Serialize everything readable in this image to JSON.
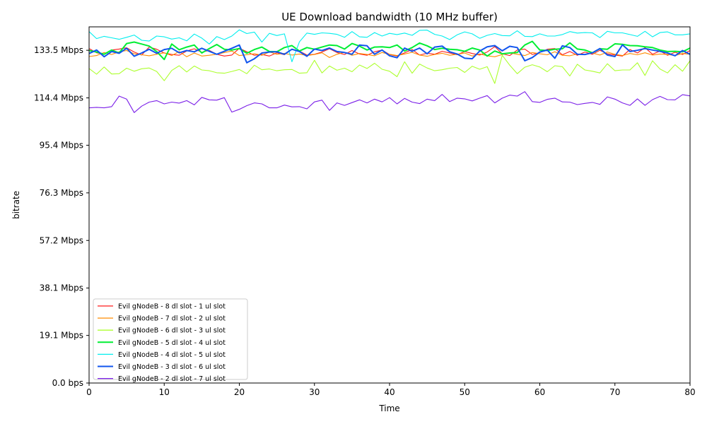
{
  "chart_data": {
    "type": "line",
    "title": "UE Download bandwidth (10 MHz buffer)",
    "xlabel": "Time",
    "ylabel": "bitrate",
    "xlim": [
      0,
      80
    ],
    "ylim": [
      0,
      142.9
    ],
    "x_ticks": [
      0,
      10,
      20,
      30,
      40,
      50,
      60,
      70,
      80
    ],
    "x_tick_labels": [
      "0",
      "10",
      "20",
      "30",
      "40",
      "50",
      "60",
      "70",
      "80"
    ],
    "y_ticks": [
      0,
      19.1,
      38.1,
      57.2,
      76.3,
      95.4,
      114.4,
      133.5
    ],
    "y_tick_labels": [
      "0.0 bps",
      "19.1 Mbps",
      "38.1 Mbps",
      "57.2 Mbps",
      "76.3 Mbps",
      "95.4 Mbps",
      "114.4 Mbps",
      "133.5 Mbps"
    ],
    "legend_position": "lower-left",
    "grid": false,
    "x": [
      0,
      1,
      2,
      3,
      4,
      5,
      6,
      7,
      8,
      9,
      10,
      11,
      12,
      13,
      14,
      15,
      16,
      17,
      18,
      19,
      20,
      21,
      22,
      23,
      24,
      25,
      26,
      27,
      28,
      29,
      30,
      31,
      32,
      33,
      34,
      35,
      36,
      37,
      38,
      39,
      40,
      41,
      42,
      43,
      44,
      45,
      46,
      47,
      48,
      49,
      50,
      51,
      52,
      53,
      54,
      55,
      56,
      57,
      58,
      59,
      60,
      61,
      62,
      63,
      64,
      65,
      66,
      67,
      68,
      69,
      70,
      71,
      72,
      73,
      74,
      75,
      76,
      77,
      78,
      79,
      80
    ],
    "series": [
      {
        "name": "Evil gNodeB - 8 dl slot - 1 ul slot",
        "color": "#ff1a1a",
        "values": [
          134.2,
          132.5,
          131.9,
          133.6,
          134.0,
          134.5,
          132.8,
          131.6,
          134.8,
          133.9,
          132.4,
          131.8,
          131.5,
          133.2,
          134.1,
          132.7,
          133.5,
          131.9,
          131.2,
          131.6,
          134.3,
          132.9,
          131.5,
          131.8,
          131.2,
          132.5,
          131.7,
          134.0,
          133.2,
          131.6,
          131.9,
          132.8,
          134.1,
          132.6,
          131.8,
          133.4,
          132.0,
          131.5,
          132.9,
          133.6,
          131.8,
          131.2,
          132.5,
          133.8,
          131.6,
          132.3,
          131.9,
          133.1,
          132.4,
          131.7,
          133.0,
          132.2,
          131.6,
          132.8,
          135.0,
          132.1,
          131.4,
          133.6,
          134.0,
          131.8,
          132.6,
          133.9,
          134.2,
          131.7,
          133.0,
          131.5,
          132.8,
          131.9,
          133.5,
          132.1,
          131.6,
          131.2,
          133.8,
          132.4,
          134.6,
          131.9,
          133.2,
          131.5,
          132.7,
          131.8,
          133.4
        ]
      },
      {
        "name": "Evil gNodeB - 7 dl slot - 2 ul slot",
        "color": "#ff8c00",
        "values": [
          131.0,
          131.4,
          132.6,
          131.8,
          132.9,
          133.4,
          132.1,
          131.7,
          131.3,
          131.9,
          132.5,
          131.4,
          133.0,
          130.9,
          132.4,
          131.2,
          131.5,
          131.9,
          132.6,
          133.2,
          131.4,
          131.7,
          132.1,
          131.5,
          132.8,
          131.9,
          132.3,
          131.6,
          132.0,
          131.4,
          131.8,
          132.5,
          130.6,
          131.9,
          132.7,
          131.5,
          132.2,
          131.8,
          131.3,
          132.6,
          131.9,
          131.4,
          132.0,
          132.7,
          131.6,
          131.1,
          131.8,
          132.3,
          131.5,
          131.9,
          132.4,
          131.2,
          132.0,
          131.3,
          130.9,
          131.8,
          132.5,
          131.9,
          131.4,
          132.6,
          132.1,
          131.7,
          132.9,
          131.5,
          131.3,
          132.0,
          131.8,
          132.4,
          131.6,
          132.8,
          131.9,
          131.4,
          132.2,
          131.7,
          132.5,
          131.6,
          132.0,
          131.8,
          131.4,
          132.2,
          131.9
        ]
      },
      {
        "name": "Evil gNodeB - 6 dl slot - 3 ul slot",
        "color": "#adff2f",
        "values": [
          126.2,
          123.9,
          126.8,
          124.0,
          124.1,
          126.3,
          125.1,
          126.1,
          126.4,
          125.0,
          121.3,
          125.4,
          127.3,
          124.8,
          127.2,
          125.6,
          125.3,
          124.5,
          124.3,
          125.0,
          125.8,
          124.1,
          127.5,
          125.7,
          126.0,
          125.3,
          125.7,
          125.8,
          124.3,
          124.5,
          129.5,
          124.4,
          127.2,
          125.5,
          126.3,
          124.9,
          127.6,
          126.2,
          128.3,
          125.9,
          125.1,
          122.9,
          128.9,
          124.3,
          128.0,
          126.4,
          125.3,
          125.7,
          126.3,
          126.6,
          124.6,
          127.1,
          125.9,
          126.9,
          120.2,
          131.5,
          127.5,
          124.1,
          126.7,
          127.7,
          126.8,
          124.9,
          127.3,
          126.9,
          123.2,
          127.9,
          125.6,
          125.1,
          124.4,
          128.1,
          125.3,
          125.6,
          125.6,
          128.5,
          123.4,
          129.3,
          126.0,
          124.4,
          127.7,
          125.1,
          129.3
        ]
      },
      {
        "name": "Evil gNodeB - 5 dl slot - 4 ul slot",
        "color": "#00ee33",
        "values": [
          133.4,
          132.8,
          131.9,
          133.6,
          132.4,
          136.2,
          136.8,
          136.0,
          135.2,
          133.0,
          129.8,
          136.0,
          133.7,
          134.8,
          135.6,
          132.4,
          134.2,
          135.8,
          133.9,
          133.6,
          134.2,
          132.3,
          133.8,
          134.8,
          133.0,
          132.9,
          134.6,
          135.4,
          133.2,
          134.6,
          133.9,
          134.8,
          135.6,
          135.4,
          134.0,
          136.2,
          135.2,
          133.6,
          134.8,
          134.9,
          134.6,
          135.6,
          133.2,
          134.6,
          136.4,
          135.3,
          133.8,
          134.3,
          133.9,
          133.7,
          133.1,
          134.4,
          133.6,
          131.2,
          133.2,
          132.1,
          132.4,
          132.6,
          135.6,
          137.1,
          133.6,
          133.4,
          133.9,
          134.1,
          136.5,
          134.0,
          133.6,
          132.5,
          134.1,
          133.9,
          136.1,
          135.9,
          135.4,
          135.3,
          134.9,
          134.6,
          133.6,
          133.0,
          133.1,
          132.9,
          134.4
        ]
      },
      {
        "name": "Evil gNodeB - 4 dl slot - 5 ul slot",
        "color": "#00eeee",
        "values": [
          141.0,
          138.2,
          139.1,
          138.5,
          137.9,
          138.7,
          139.6,
          137.5,
          137.2,
          139.2,
          138.9,
          138.0,
          138.5,
          137.3,
          140.0,
          138.4,
          136.0,
          139.0,
          137.8,
          139.2,
          141.7,
          140.2,
          140.8,
          136.8,
          140.3,
          139.4,
          140.1,
          128.9,
          136.9,
          140.4,
          139.9,
          140.5,
          140.3,
          139.9,
          138.7,
          141.0,
          138.9,
          138.7,
          140.6,
          139.2,
          140.3,
          139.8,
          140.4,
          139.5,
          141.5,
          141.6,
          139.9,
          139.2,
          137.8,
          139.7,
          140.9,
          140.1,
          138.3,
          139.5,
          140.2,
          139.4,
          139.3,
          141.3,
          139.1,
          139.0,
          140.1,
          139.2,
          139.2,
          139.8,
          141.0,
          140.4,
          140.6,
          140.5,
          138.6,
          141.1,
          140.5,
          140.5,
          139.8,
          139.1,
          141.1,
          138.9,
          140.6,
          140.9,
          139.7,
          139.7,
          140.1
        ]
      },
      {
        "name": "Evil gNodeB - 3 dl slot - 6 ul slot",
        "color": "#1155ee",
        "values": [
          132.2,
          133.6,
          130.9,
          133.0,
          132.3,
          134.3,
          131.1,
          132.4,
          133.9,
          132.3,
          133.8,
          134.3,
          132.5,
          133.4,
          132.9,
          134.3,
          133.1,
          131.9,
          133.1,
          134.3,
          135.6,
          128.5,
          130.1,
          132.4,
          132.8,
          132.9,
          131.9,
          133.9,
          133.0,
          131.1,
          134.0,
          133.4,
          134.4,
          133.0,
          132.6,
          131.9,
          135.6,
          135.3,
          131.9,
          133.6,
          131.3,
          130.5,
          134.4,
          133.1,
          134.4,
          132.1,
          134.8,
          135.2,
          132.9,
          132.0,
          130.3,
          130.1,
          133.2,
          134.9,
          135.4,
          133.3,
          135.1,
          134.6,
          129.3,
          130.6,
          132.8,
          133.6,
          130.3,
          135.3,
          134.6,
          131.9,
          131.8,
          132.5,
          134.2,
          131.6,
          131.0,
          135.7,
          133.0,
          133.5,
          134.2,
          133.6,
          133.1,
          132.4,
          131.3,
          133.4,
          131.9
        ]
      },
      {
        "name": "Evil gNodeB - 2 dl slot - 7 ul slot",
        "color": "#7b1fe8",
        "values": [
          110.4,
          110.6,
          110.4,
          110.9,
          115.1,
          113.9,
          108.5,
          111.1,
          112.7,
          113.3,
          112.0,
          112.7,
          112.3,
          113.3,
          111.6,
          114.6,
          113.6,
          113.5,
          114.5,
          108.7,
          109.8,
          111.3,
          112.4,
          112.0,
          110.4,
          110.4,
          111.5,
          110.8,
          110.9,
          110.0,
          112.8,
          113.5,
          109.4,
          112.4,
          111.4,
          112.5,
          113.6,
          112.4,
          113.9,
          112.8,
          114.5,
          112.0,
          114.2,
          112.7,
          112.1,
          113.9,
          113.3,
          115.8,
          112.9,
          114.3,
          114.0,
          113.2,
          114.3,
          115.3,
          112.4,
          114.3,
          115.5,
          115.1,
          116.9,
          112.9,
          112.6,
          113.8,
          114.3,
          112.8,
          112.7,
          111.7,
          112.2,
          112.6,
          111.8,
          114.8,
          113.9,
          112.4,
          111.4,
          114.0,
          111.4,
          113.7,
          115.0,
          113.7,
          113.6,
          115.7,
          115.2
        ]
      }
    ]
  }
}
